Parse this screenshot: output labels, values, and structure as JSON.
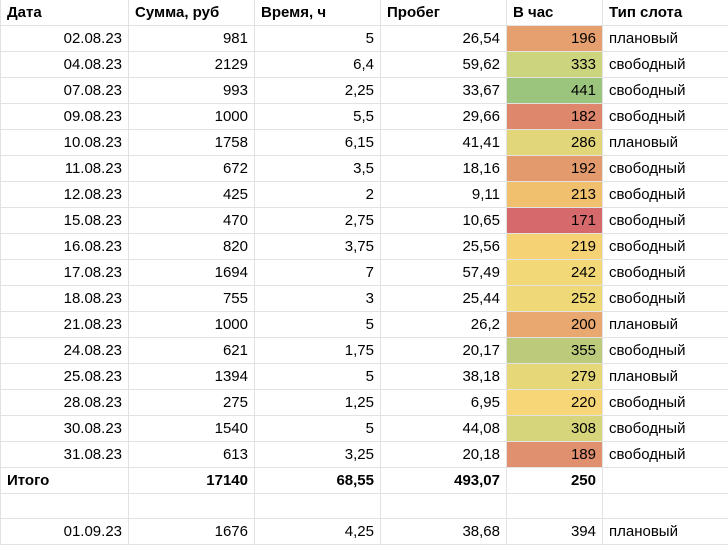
{
  "headers": {
    "date": "Дата",
    "sum": "Сумма, руб",
    "time": "Время, ч",
    "mileage": "Пробег",
    "per_hour": "В час",
    "slot_type": "Тип слота"
  },
  "rows": [
    {
      "date": "02.08.23",
      "sum": "981",
      "time": "5",
      "mileage": "26,54",
      "per_hour": "196",
      "per_hour_color": "#e6a06f",
      "slot": "плановый"
    },
    {
      "date": "04.08.23",
      "sum": "2129",
      "time": "6,4",
      "mileage": "59,62",
      "per_hour": "333",
      "per_hour_color": "#cdd47e",
      "slot": "свободный"
    },
    {
      "date": "07.08.23",
      "sum": "993",
      "time": "2,25",
      "mileage": "33,67",
      "per_hour": "441",
      "per_hour_color": "#9bc47c",
      "slot": "свободный"
    },
    {
      "date": "09.08.23",
      "sum": "1000",
      "time": "5,5",
      "mileage": "29,66",
      "per_hour": "182",
      "per_hour_color": "#df876d",
      "slot": "свободный"
    },
    {
      "date": "10.08.23",
      "sum": "1758",
      "time": "6,15",
      "mileage": "41,41",
      "per_hour": "286",
      "per_hour_color": "#e2d67a",
      "slot": "плановый"
    },
    {
      "date": "11.08.23",
      "sum": "672",
      "time": "3,5",
      "mileage": "18,16",
      "per_hour": "192",
      "per_hour_color": "#e39b6e",
      "slot": "свободный"
    },
    {
      "date": "12.08.23",
      "sum": "425",
      "time": "2",
      "mileage": "9,11",
      "per_hour": "213",
      "per_hour_color": "#f0c06f",
      "slot": "свободный"
    },
    {
      "date": "15.08.23",
      "sum": "470",
      "time": "2,75",
      "mileage": "10,65",
      "per_hour": "171",
      "per_hour_color": "#d6696b",
      "slot": "свободный"
    },
    {
      "date": "16.08.23",
      "sum": "820",
      "time": "3,75",
      "mileage": "25,56",
      "per_hour": "219",
      "per_hour_color": "#f5d374",
      "slot": "свободный"
    },
    {
      "date": "17.08.23",
      "sum": "1694",
      "time": "7",
      "mileage": "57,49",
      "per_hour": "242",
      "per_hour_color": "#f3d877",
      "slot": "свободный"
    },
    {
      "date": "18.08.23",
      "sum": "755",
      "time": "3",
      "mileage": "25,44",
      "per_hour": "252",
      "per_hour_color": "#efd877",
      "slot": "свободный"
    },
    {
      "date": "21.08.23",
      "sum": "1000",
      "time": "5",
      "mileage": "26,2",
      "per_hour": "200",
      "per_hour_color": "#e9a86f",
      "slot": "плановый"
    },
    {
      "date": "24.08.23",
      "sum": "621",
      "time": "1,75",
      "mileage": "20,17",
      "per_hour": "355",
      "per_hour_color": "#bccb7b",
      "slot": "свободный"
    },
    {
      "date": "25.08.23",
      "sum": "1394",
      "time": "5",
      "mileage": "38,18",
      "per_hour": "279",
      "per_hour_color": "#e6d779",
      "slot": "плановый"
    },
    {
      "date": "28.08.23",
      "sum": "275",
      "time": "1,25",
      "mileage": "6,95",
      "per_hour": "220",
      "per_hour_color": "#f6d676",
      "slot": "свободный"
    },
    {
      "date": "30.08.23",
      "sum": "1540",
      "time": "5",
      "mileage": "44,08",
      "per_hour": "308",
      "per_hour_color": "#d7d57b",
      "slot": "свободный"
    },
    {
      "date": "31.08.23",
      "sum": "613",
      "time": "3,25",
      "mileage": "20,18",
      "per_hour": "189",
      "per_hour_color": "#e0906e",
      "slot": "свободный"
    }
  ],
  "total": {
    "label": "Итого",
    "sum": "17140",
    "time": "68,55",
    "mileage": "493,07",
    "per_hour": "250"
  },
  "extra_row": {
    "date": "01.09.23",
    "sum": "1676",
    "time": "4,25",
    "mileage": "38,68",
    "per_hour": "394",
    "slot": "плановый"
  }
}
